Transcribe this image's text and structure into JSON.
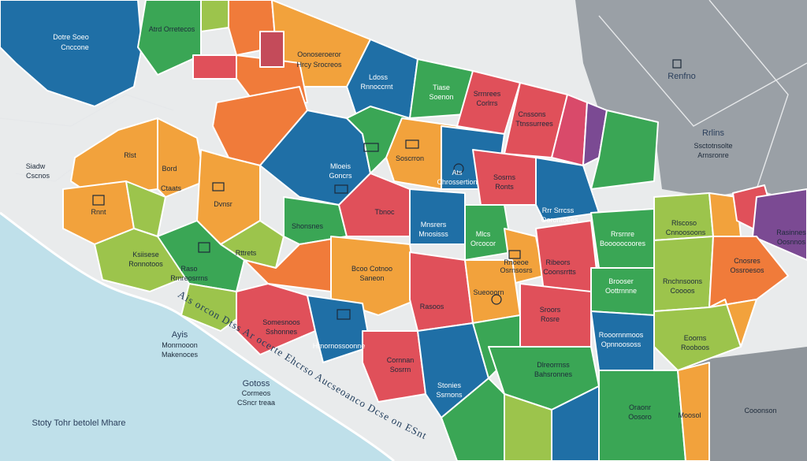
{
  "colors": {
    "ocean": "#bfe0ea",
    "land": "#e9ebec",
    "land_gray": "#9aa0a6",
    "blue": "#1f6fa6",
    "green": "#3aa655",
    "orange": "#f2a23c",
    "red": "#e0505a",
    "lime": "#9cc44c",
    "tangerine": "#f07b3a",
    "purple": "#7b4a93"
  },
  "labels": {
    "nw_title": "Dotre Soeo",
    "nw_sub": "Cnccone",
    "top_green": "Atrd Orretecos",
    "top_orange": "Oonoseroeror",
    "top_orange2": "Hrcy Srocreos",
    "blue_top": "Ldoss",
    "blue_top2": "Rnnoccrnt",
    "green_top": "Tiase",
    "green_top2": "Soenon",
    "red_top": "Srrnrees",
    "red_top2": "Corlrrs",
    "red_top3": "Cnssons",
    "red_top4": "Ttnssurrees",
    "east_title": "Renfno",
    "east_sub": "Rrlins",
    "east_sub2": "Ssctotnsolte",
    "east_sub3": "Arnsronre",
    "west_coast": "Siadw",
    "west_coast2": "Cscnos",
    "orange_w": "Rlst",
    "orange_w2": "Bord",
    "orange_w3": "Ctaats",
    "orange_w4": "Rnnt",
    "orange_w5": "Dvnsr",
    "blue_mid": "Mloeis",
    "blue_mid2": "Goncrs",
    "green_mid": "Soscrron",
    "red_mid": "Sosrns",
    "red_mid2": "Ronts",
    "red_mid3": "Tbnoc",
    "blue_c": "Mnsrers",
    "blue_c2": "Mnosisss",
    "blue_c3": "Shonsnes",
    "blue_r": "Ats",
    "blue_r2": "Chrossertion",
    "blue_e": "Rrr Srrcss",
    "blue_e2": "Oorontoees",
    "green_e": "Mlcs",
    "green_e2": "Orcocor",
    "green_far": "Rrsrnre",
    "green_far2": "Booooocoores",
    "lime_e": "Rlscoso",
    "lime_e2": "Cnnoosoons",
    "lime_w": "Ksiisese",
    "lime_w2": "Ronnotoos",
    "lime_w3": "Raso",
    "lime_w4": "Rrnreosrrns",
    "green_c": "Rttrets",
    "orange_c": "Bcoo Cotnoo",
    "orange_c2": "Saneon",
    "red_c": "Ribeors",
    "red_c2": "Coonsrrtts",
    "red_sw": "Somesnoos",
    "red_sw2": "Sshonnes",
    "blue_sw": "Hrnornossoonne",
    "orange_r": "Sueooorn",
    "orange_r2": "Rasoos",
    "red_r": "Sroors",
    "red_r2": "Rosre",
    "red_r3": "Rnoeoe",
    "red_r4": "Osrnsosrs",
    "green_r": "Brooser",
    "green_r2": "Oottrnnne",
    "lime_r": "Rnchnsoons",
    "lime_r2": "Coooos",
    "red_far": "Cnosres",
    "red_far2": "Ossroesos",
    "purple_far": "Rasinnes",
    "purple_far2": "Oosnnos",
    "red_s": "Cornnan",
    "red_s2": "Sosrrn",
    "blue_s": "Stonies",
    "blue_s2": "Ssrnons",
    "green_s": "Dlreorrnss",
    "green_s2": "Bahsronnes",
    "green_s3": "Rooornnmoos",
    "green_s4": "Opnnoososs",
    "green_s5": "Eoorns",
    "green_s6": "Rooboos",
    "orange_s": "Oraonr",
    "orange_s2": "Oosoro",
    "gray_s": "Moosol",
    "gray_s2": "Cooonson",
    "ocean_label": "Ayis",
    "ocean_label2": "Monrnooon",
    "ocean_label3": "Makenoces",
    "ocean_label4": "Gotoss",
    "ocean_label5": "Cormeos",
    "ocean_label6": "CSncr treaa",
    "coastline_text": "Ais orcon Dtss Ar ocerte Ehcrso Aucseoanco Dcse on ESntosa",
    "bottom_left": "Stoty  Tohr betolel Mhare"
  }
}
